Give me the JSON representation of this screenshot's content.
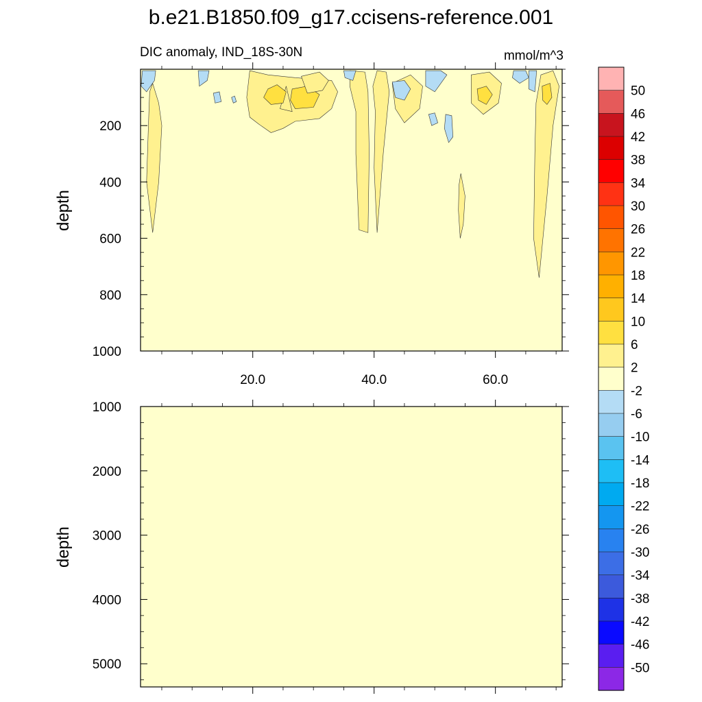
{
  "title": "b.e21.B1850.f09_g17.ccisens-reference.001",
  "chart_data": [
    {
      "type": "heatmap",
      "subtitle": "DIC anomaly, IND_18S-30N",
      "units": "mmol/m^3",
      "ylabel": "depth",
      "xlabel": "",
      "xlim": [
        1.5,
        71
      ],
      "ylim": [
        0,
        1000
      ],
      "y_reversed": true,
      "x_ticks": [
        "20.0",
        "40.0",
        "60.0"
      ],
      "x_tick_values": [
        20,
        40,
        60
      ],
      "y_ticks": [
        "200",
        "400",
        "600",
        "800",
        "1000"
      ],
      "y_tick_values": [
        200,
        400,
        600,
        800,
        1000
      ],
      "background_level": "-2 to 2",
      "background_color": "#ffffcc",
      "anomaly_regions": [
        {
          "level": "2 to 6",
          "color": "#fff18f",
          "points": [
            [
              3.5,
              50
            ],
            [
              4.5,
              120
            ],
            [
              5,
              200
            ],
            [
              4.5,
              400
            ],
            [
              3.5,
              580
            ],
            [
              2.5,
              400
            ],
            [
              2.8,
              200
            ],
            [
              3,
              80
            ]
          ]
        },
        {
          "level": "2 to 6",
          "color": "#fff18f",
          "points": [
            [
              19.5,
              5
            ],
            [
              22.5,
              20
            ],
            [
              27,
              30
            ],
            [
              33,
              40
            ],
            [
              34,
              80
            ],
            [
              33,
              140
            ],
            [
              31,
              175
            ],
            [
              27,
              185
            ],
            [
              25,
              210
            ],
            [
              23,
              225
            ],
            [
              21,
              195
            ],
            [
              19.5,
              170
            ],
            [
              19,
              100
            ]
          ]
        },
        {
          "level": "2 to 6",
          "color": "#fff18f",
          "points": [
            [
              25.5,
              60
            ],
            [
              26.5,
              150
            ],
            [
              24.5,
              140
            ]
          ]
        },
        {
          "level": "6 to 10",
          "color": "#ffe040",
          "points": [
            [
              22.5,
              70
            ],
            [
              24,
              55
            ],
            [
              25.5,
              80
            ],
            [
              25,
              120
            ],
            [
              23,
              125
            ],
            [
              21.8,
              100
            ]
          ]
        },
        {
          "level": "6 to 10",
          "color": "#ffe040",
          "points": [
            [
              26.5,
              70
            ],
            [
              29,
              60
            ],
            [
              31,
              90
            ],
            [
              30,
              135
            ],
            [
              27,
              140
            ],
            [
              26.2,
              110
            ]
          ]
        },
        {
          "level": "2 to 6",
          "color": "#fff18f",
          "points": [
            [
              28,
              25
            ],
            [
              31,
              10
            ],
            [
              32.5,
              40
            ],
            [
              31.5,
              75
            ],
            [
              29,
              85
            ]
          ]
        },
        {
          "level": "2 to 6",
          "color": "#fff18f",
          "points": [
            [
              36,
              5
            ],
            [
              38.5,
              10
            ],
            [
              39,
              80
            ],
            [
              39.2,
              300
            ],
            [
              39,
              580
            ],
            [
              37.5,
              570
            ],
            [
              37,
              300
            ],
            [
              37,
              150
            ],
            [
              36,
              60
            ]
          ]
        },
        {
          "level": "2 to 6",
          "color": "#fff18f",
          "points": [
            [
              40.5,
              5
            ],
            [
              42,
              10
            ],
            [
              42.5,
              80
            ],
            [
              41.5,
              300
            ],
            [
              40.5,
              580
            ],
            [
              40,
              350
            ],
            [
              40.2,
              150
            ],
            [
              39.8,
              60
            ]
          ]
        },
        {
          "level": "2 to 6",
          "color": "#fff18f",
          "points": [
            [
              43,
              50
            ],
            [
              46,
              20
            ],
            [
              48,
              60
            ],
            [
              47.5,
              140
            ],
            [
              45,
              190
            ],
            [
              43.5,
              140
            ]
          ]
        },
        {
          "level": "2 to 6",
          "color": "#fff18f",
          "points": [
            [
              54.3,
              370
            ],
            [
              55,
              450
            ],
            [
              54.7,
              550
            ],
            [
              54.2,
              600
            ],
            [
              53.9,
              500
            ],
            [
              54,
              410
            ]
          ]
        },
        {
          "level": "2 to 6",
          "color": "#fff18f",
          "points": [
            [
              56,
              20
            ],
            [
              59,
              10
            ],
            [
              61,
              50
            ],
            [
              60.5,
              120
            ],
            [
              58,
              160
            ],
            [
              56,
              120
            ]
          ]
        },
        {
          "level": "6 to 10",
          "color": "#ffe040",
          "points": [
            [
              57,
              70
            ],
            [
              58.5,
              60
            ],
            [
              59.5,
              90
            ],
            [
              58.5,
              125
            ],
            [
              57.2,
              110
            ]
          ]
        },
        {
          "level": "2 to 6",
          "color": "#fff18f",
          "points": [
            [
              67.5,
              20
            ],
            [
              69.5,
              5
            ],
            [
              70.5,
              60
            ],
            [
              69.5,
              200
            ],
            [
              68.5,
              450
            ],
            [
              67.2,
              740
            ],
            [
              66.3,
              600
            ],
            [
              66.5,
              300
            ],
            [
              66.7,
              120
            ]
          ]
        },
        {
          "level": "6 to 10",
          "color": "#ffe040",
          "points": [
            [
              67.7,
              60
            ],
            [
              69,
              50
            ],
            [
              69.3,
              100
            ],
            [
              68.5,
              125
            ],
            [
              67.8,
              110
            ]
          ]
        },
        {
          "level": "-6 to -2",
          "color": "#b4dcf5",
          "points": [
            [
              1.8,
              5
            ],
            [
              4,
              5
            ],
            [
              3.8,
              40
            ],
            [
              2.5,
              80
            ],
            [
              1.6,
              60
            ]
          ]
        },
        {
          "level": "-6 to -2",
          "color": "#b4dcf5",
          "points": [
            [
              11,
              5
            ],
            [
              12.8,
              5
            ],
            [
              12.5,
              40
            ],
            [
              11.2,
              60
            ]
          ]
        },
        {
          "level": "-6 to -2",
          "color": "#b4dcf5",
          "points": [
            [
              13.5,
              85
            ],
            [
              14.5,
              80
            ],
            [
              14.8,
              115
            ],
            [
              13.8,
              120
            ]
          ]
        },
        {
          "level": "-6 to -2",
          "color": "#b4dcf5",
          "points": [
            [
              16.5,
              100
            ],
            [
              17,
              95
            ],
            [
              17.3,
              115
            ],
            [
              16.8,
              120
            ]
          ]
        },
        {
          "level": "-6 to -2",
          "color": "#b4dcf5",
          "points": [
            [
              35,
              5
            ],
            [
              37,
              5
            ],
            [
              36.5,
              40
            ],
            [
              35.2,
              30
            ]
          ]
        },
        {
          "level": "-6 to -2",
          "color": "#b4dcf5",
          "points": [
            [
              43,
              45
            ],
            [
              45,
              40
            ],
            [
              46,
              70
            ],
            [
              45,
              110
            ],
            [
              43.5,
              100
            ]
          ]
        },
        {
          "level": "-6 to -2",
          "color": "#b4dcf5",
          "points": [
            [
              48.5,
              5
            ],
            [
              51,
              5
            ],
            [
              52,
              20
            ],
            [
              50,
              80
            ],
            [
              48.5,
              60
            ]
          ]
        },
        {
          "level": "-6 to -2",
          "color": "#b4dcf5",
          "points": [
            [
              49,
              160
            ],
            [
              50,
              155
            ],
            [
              50.5,
              190
            ],
            [
              49.5,
              200
            ]
          ]
        },
        {
          "level": "-6 to -2",
          "color": "#b4dcf5",
          "points": [
            [
              51.8,
              160
            ],
            [
              52.8,
              165
            ],
            [
              53,
              240
            ],
            [
              52.3,
              260
            ],
            [
              51.6,
              210
            ]
          ]
        },
        {
          "level": "-6 to -2",
          "color": "#b4dcf5",
          "points": [
            [
              63,
              5
            ],
            [
              65,
              5
            ],
            [
              65.5,
              30
            ],
            [
              64,
              50
            ],
            [
              62.8,
              30
            ]
          ]
        },
        {
          "level": "-6 to -2",
          "color": "#b4dcf5",
          "points": [
            [
              65.5,
              5
            ],
            [
              66.8,
              5
            ],
            [
              66.5,
              80
            ],
            [
              65.5,
              70
            ]
          ]
        }
      ]
    },
    {
      "type": "heatmap",
      "ylabel": "depth",
      "xlabel": "",
      "xlim": [
        1.5,
        71
      ],
      "ylim": [
        1000,
        5360
      ],
      "y_reversed": true,
      "y_ticks": [
        "1000",
        "2000",
        "3000",
        "4000",
        "5000"
      ],
      "y_tick_values": [
        1000,
        2000,
        3000,
        4000,
        5000
      ],
      "background_level": "-2 to 2",
      "background_color": "#ffffcc",
      "anomaly_regions": []
    }
  ],
  "colorbar": {
    "labels": [
      "50",
      "46",
      "42",
      "38",
      "34",
      "30",
      "26",
      "22",
      "18",
      "14",
      "10",
      "6",
      "2",
      "-2",
      "-6",
      "-10",
      "-14",
      "-18",
      "-22",
      "-26",
      "-30",
      "-34",
      "-38",
      "-42",
      "-46",
      "-50"
    ],
    "colors": [
      "#ffb3b3",
      "#e55a5a",
      "#c8141e",
      "#dc0000",
      "#ff0000",
      "#ff3214",
      "#ff5500",
      "#ff7300",
      "#ff9600",
      "#ffb000",
      "#ffc81e",
      "#ffe040",
      "#fff18f",
      "#ffffcc",
      "#b4dcf5",
      "#96cdf0",
      "#5ac3f0",
      "#1ebef5",
      "#00aaf0",
      "#1496f0",
      "#2882f0",
      "#3c6ee6",
      "#3c5adc",
      "#1e32e6",
      "#0a0aff",
      "#5a1ef0",
      "#8c28e6"
    ]
  }
}
